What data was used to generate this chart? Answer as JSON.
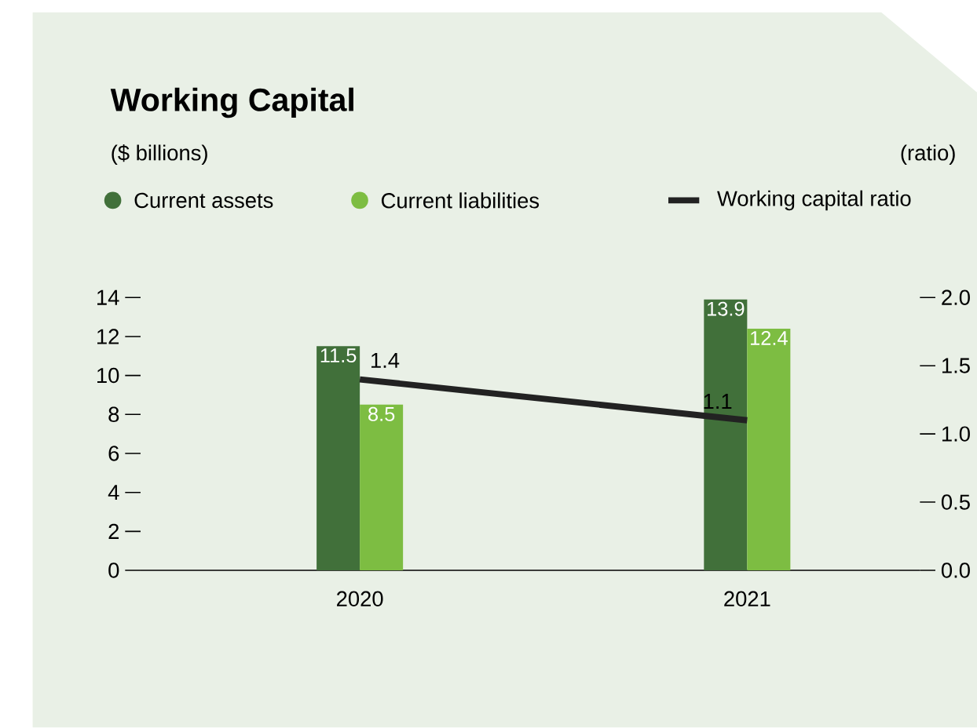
{
  "chart_data": {
    "type": "bar",
    "title": "Working Capital",
    "annotations": [
      "($ billions)",
      "(ratio)"
    ],
    "categories": [
      "2020",
      "2021"
    ],
    "series": [
      {
        "name": "Current assets",
        "color": "#41703a",
        "values": [
          11.5,
          13.9
        ]
      },
      {
        "name": "Current liabilities",
        "color": "#7dbd42",
        "values": [
          8.5,
          12.4
        ]
      },
      {
        "name": "Working capital ratio",
        "color": "#222222",
        "type": "line",
        "axis": "y2",
        "values": [
          1.4,
          1.1
        ]
      }
    ],
    "ylim": [
      0,
      14
    ],
    "yticks": [
      0,
      2,
      4,
      6,
      8,
      10,
      12,
      14
    ],
    "y2lim": [
      0,
      2.0
    ],
    "y2ticks": [
      {
        "value": 0,
        "label": "0.0"
      },
      {
        "value": 0.5,
        "label": "0.5"
      },
      {
        "value": 1.0,
        "label": "1.0"
      },
      {
        "value": 1.5,
        "label": "1.5"
      },
      {
        "value": 2.0,
        "label": "2.0"
      }
    ],
    "data_labels": true,
    "legend": "top"
  }
}
